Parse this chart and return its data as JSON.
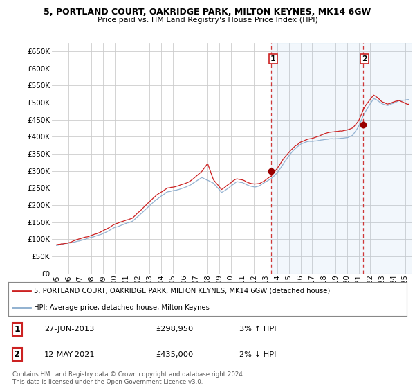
{
  "title": "5, PORTLAND COURT, OAKRIDGE PARK, MILTON KEYNES, MK14 6GW",
  "subtitle": "Price paid vs. HM Land Registry's House Price Index (HPI)",
  "ylim": [
    0,
    675000
  ],
  "yticks": [
    0,
    50000,
    100000,
    150000,
    200000,
    250000,
    300000,
    350000,
    400000,
    450000,
    500000,
    550000,
    600000,
    650000
  ],
  "xlim_start": 1994.6,
  "xlim_end": 2025.6,
  "sale1_x": 2013.49,
  "sale1_y": 298950,
  "sale2_x": 2021.36,
  "sale2_y": 435000,
  "sale1_date": "27-JUN-2013",
  "sale1_price": "£298,950",
  "sale1_hpi": "3% ↑ HPI",
  "sale2_date": "12-MAY-2021",
  "sale2_price": "£435,000",
  "sale2_hpi": "2% ↓ HPI",
  "line1_color": "#cc2222",
  "line2_color": "#88aacc",
  "fill_color": "#ddeeff",
  "dashed_color": "#cc2222",
  "grid_color": "#cccccc",
  "background_chart": "#ffffff",
  "background_fig": "#ffffff",
  "legend_line1": "5, PORTLAND COURT, OAKRIDGE PARK, MILTON KEYNES, MK14 6GW (detached house)",
  "legend_line2": "HPI: Average price, detached house, Milton Keynes",
  "footer": "Contains HM Land Registry data © Crown copyright and database right 2024.\nThis data is licensed under the Open Government Licence v3.0."
}
